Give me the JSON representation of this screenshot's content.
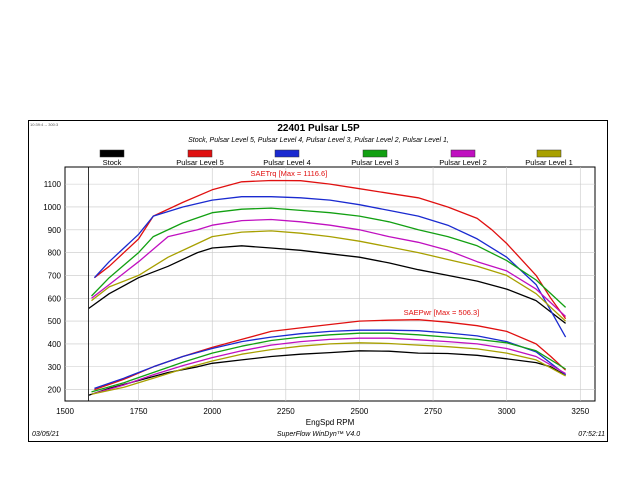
{
  "header": {
    "corner_text": "10:39:4 -- 300:3",
    "title": "22401 Pulsar L5P",
    "subtitle": "Stock, Pulsar Level 5, Pulsar Level 4, Pulsar Level 3, Pulsar Level 2, Pulsar Level 1,"
  },
  "footer": {
    "date": "03/05/21",
    "app": "SuperFlow WinDyn™ V4.0",
    "time": "07:52:11"
  },
  "chart_data": {
    "type": "line",
    "xlabel": "EngSpd RPM",
    "ylabel": "",
    "xlim": [
      1500,
      3300
    ],
    "ylim": [
      150,
      1175
    ],
    "x_ticks": [
      1500,
      1750,
      2000,
      2250,
      2500,
      2750,
      3000,
      3250
    ],
    "y_ticks": [
      200,
      300,
      400,
      500,
      600,
      700,
      800,
      900,
      1000,
      1100
    ],
    "grid": true,
    "legend_position": "top",
    "annotations": [
      {
        "text": "SAETrq [Max = 1116.6]",
        "x": 2130,
        "y": 1135,
        "color": "#e01010"
      },
      {
        "text": "SAEPwr [Max = 506.3]",
        "x": 2650,
        "y": 527,
        "color": "#e01010"
      }
    ],
    "series": [
      {
        "name": "Stock",
        "color": "#000000",
        "swatch": "#000000",
        "torque": [
          [
            1580,
            555
          ],
          [
            1650,
            620
          ],
          [
            1750,
            690
          ],
          [
            1850,
            740
          ],
          [
            1950,
            800
          ],
          [
            2000,
            820
          ],
          [
            2100,
            830
          ],
          [
            2200,
            820
          ],
          [
            2300,
            810
          ],
          [
            2400,
            795
          ],
          [
            2500,
            780
          ],
          [
            2600,
            755
          ],
          [
            2700,
            725
          ],
          [
            2800,
            700
          ],
          [
            2900,
            675
          ],
          [
            3000,
            640
          ],
          [
            3100,
            590
          ],
          [
            3150,
            540
          ],
          [
            3200,
            490
          ]
        ],
        "power": [
          [
            1580,
            175
          ],
          [
            1650,
            205
          ],
          [
            1750,
            240
          ],
          [
            1850,
            275
          ],
          [
            1950,
            300
          ],
          [
            2000,
            315
          ],
          [
            2100,
            330
          ],
          [
            2200,
            345
          ],
          [
            2300,
            355
          ],
          [
            2400,
            362
          ],
          [
            2500,
            370
          ],
          [
            2600,
            368
          ],
          [
            2700,
            360
          ],
          [
            2800,
            358
          ],
          [
            2900,
            350
          ],
          [
            3000,
            335
          ],
          [
            3100,
            318
          ],
          [
            3150,
            300
          ],
          [
            3200,
            262
          ]
        ]
      },
      {
        "name": "Pulsar Level 5",
        "color": "#e01010",
        "swatch": "#e01010",
        "torque": [
          [
            1600,
            690
          ],
          [
            1650,
            740
          ],
          [
            1750,
            860
          ],
          [
            1800,
            960
          ],
          [
            1900,
            1020
          ],
          [
            2000,
            1075
          ],
          [
            2100,
            1110
          ],
          [
            2200,
            1116
          ],
          [
            2300,
            1115
          ],
          [
            2400,
            1100
          ],
          [
            2500,
            1080
          ],
          [
            2600,
            1060
          ],
          [
            2700,
            1040
          ],
          [
            2800,
            1000
          ],
          [
            2900,
            950
          ],
          [
            2950,
            900
          ],
          [
            3000,
            840
          ],
          [
            3100,
            700
          ],
          [
            3150,
            600
          ],
          [
            3200,
            510
          ]
        ],
        "power": [
          [
            1600,
            200
          ],
          [
            1700,
            245
          ],
          [
            1800,
            300
          ],
          [
            1900,
            345
          ],
          [
            2000,
            385
          ],
          [
            2100,
            420
          ],
          [
            2200,
            455
          ],
          [
            2300,
            470
          ],
          [
            2400,
            485
          ],
          [
            2500,
            500
          ],
          [
            2600,
            504
          ],
          [
            2700,
            506
          ],
          [
            2800,
            495
          ],
          [
            2900,
            480
          ],
          [
            3000,
            455
          ],
          [
            3100,
            400
          ],
          [
            3150,
            345
          ],
          [
            3200,
            285
          ]
        ]
      },
      {
        "name": "Pulsar Level 4",
        "color": "#1a2ad0",
        "swatch": "#1a2ad0",
        "torque": [
          [
            1600,
            690
          ],
          [
            1650,
            760
          ],
          [
            1750,
            880
          ],
          [
            1800,
            960
          ],
          [
            1900,
            1000
          ],
          [
            2000,
            1030
          ],
          [
            2100,
            1045
          ],
          [
            2200,
            1045
          ],
          [
            2300,
            1040
          ],
          [
            2400,
            1030
          ],
          [
            2500,
            1010
          ],
          [
            2600,
            985
          ],
          [
            2700,
            960
          ],
          [
            2800,
            920
          ],
          [
            2900,
            860
          ],
          [
            3000,
            780
          ],
          [
            3100,
            660
          ],
          [
            3200,
            430
          ]
        ],
        "power": [
          [
            1600,
            205
          ],
          [
            1700,
            250
          ],
          [
            1800,
            300
          ],
          [
            1900,
            345
          ],
          [
            2000,
            380
          ],
          [
            2100,
            410
          ],
          [
            2200,
            430
          ],
          [
            2300,
            445
          ],
          [
            2400,
            455
          ],
          [
            2500,
            460
          ],
          [
            2600,
            460
          ],
          [
            2700,
            458
          ],
          [
            2800,
            448
          ],
          [
            2900,
            435
          ],
          [
            3000,
            410
          ],
          [
            3100,
            365
          ],
          [
            3200,
            265
          ]
        ]
      },
      {
        "name": "Pulsar Level 3",
        "color": "#12a012",
        "swatch": "#12a012",
        "torque": [
          [
            1590,
            610
          ],
          [
            1650,
            690
          ],
          [
            1750,
            800
          ],
          [
            1800,
            870
          ],
          [
            1900,
            930
          ],
          [
            2000,
            975
          ],
          [
            2100,
            990
          ],
          [
            2200,
            995
          ],
          [
            2300,
            985
          ],
          [
            2400,
            975
          ],
          [
            2500,
            960
          ],
          [
            2600,
            935
          ],
          [
            2700,
            900
          ],
          [
            2800,
            870
          ],
          [
            2900,
            830
          ],
          [
            3000,
            765
          ],
          [
            3100,
            680
          ],
          [
            3200,
            560
          ]
        ],
        "power": [
          [
            1590,
            190
          ],
          [
            1700,
            230
          ],
          [
            1800,
            275
          ],
          [
            1900,
            320
          ],
          [
            2000,
            360
          ],
          [
            2100,
            390
          ],
          [
            2200,
            415
          ],
          [
            2300,
            430
          ],
          [
            2400,
            440
          ],
          [
            2500,
            447
          ],
          [
            2600,
            447
          ],
          [
            2700,
            440
          ],
          [
            2800,
            430
          ],
          [
            2900,
            420
          ],
          [
            3000,
            405
          ],
          [
            3100,
            370
          ],
          [
            3200,
            290
          ]
        ]
      },
      {
        "name": "Pulsar Level 2",
        "color": "#c010c0",
        "swatch": "#c010c0",
        "torque": [
          [
            1590,
            600
          ],
          [
            1650,
            660
          ],
          [
            1750,
            760
          ],
          [
            1850,
            870
          ],
          [
            1950,
            900
          ],
          [
            2000,
            920
          ],
          [
            2100,
            940
          ],
          [
            2200,
            945
          ],
          [
            2300,
            935
          ],
          [
            2400,
            920
          ],
          [
            2500,
            900
          ],
          [
            2600,
            870
          ],
          [
            2700,
            845
          ],
          [
            2800,
            810
          ],
          [
            2900,
            760
          ],
          [
            3000,
            720
          ],
          [
            3100,
            640
          ],
          [
            3200,
            520
          ]
        ],
        "power": [
          [
            1590,
            180
          ],
          [
            1700,
            220
          ],
          [
            1800,
            265
          ],
          [
            1900,
            305
          ],
          [
            2000,
            340
          ],
          [
            2100,
            370
          ],
          [
            2200,
            395
          ],
          [
            2300,
            410
          ],
          [
            2400,
            420
          ],
          [
            2500,
            425
          ],
          [
            2600,
            425
          ],
          [
            2700,
            418
          ],
          [
            2800,
            410
          ],
          [
            2900,
            400
          ],
          [
            3000,
            380
          ],
          [
            3100,
            345
          ],
          [
            3200,
            270
          ]
        ]
      },
      {
        "name": "Pulsar Level 1",
        "color": "#a8a000",
        "swatch": "#a8a000",
        "torque": [
          [
            1590,
            590
          ],
          [
            1650,
            650
          ],
          [
            1750,
            700
          ],
          [
            1850,
            780
          ],
          [
            1950,
            840
          ],
          [
            2000,
            870
          ],
          [
            2100,
            890
          ],
          [
            2200,
            895
          ],
          [
            2300,
            885
          ],
          [
            2400,
            870
          ],
          [
            2500,
            850
          ],
          [
            2600,
            825
          ],
          [
            2700,
            800
          ],
          [
            2800,
            770
          ],
          [
            2900,
            740
          ],
          [
            3000,
            700
          ],
          [
            3100,
            620
          ],
          [
            3200,
            500
          ]
        ],
        "power": [
          [
            1590,
            180
          ],
          [
            1700,
            210
          ],
          [
            1800,
            250
          ],
          [
            1900,
            290
          ],
          [
            2000,
            325
          ],
          [
            2100,
            355
          ],
          [
            2200,
            375
          ],
          [
            2300,
            390
          ],
          [
            2400,
            400
          ],
          [
            2500,
            405
          ],
          [
            2600,
            402
          ],
          [
            2700,
            395
          ],
          [
            2800,
            388
          ],
          [
            2900,
            378
          ],
          [
            3000,
            360
          ],
          [
            3100,
            330
          ],
          [
            3200,
            260
          ]
        ]
      }
    ]
  }
}
